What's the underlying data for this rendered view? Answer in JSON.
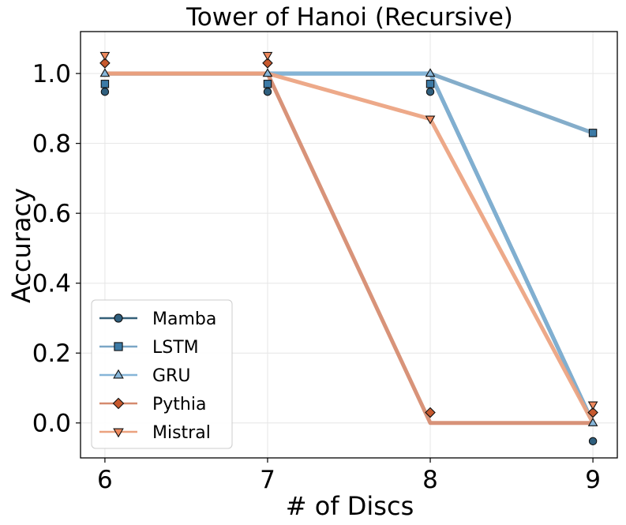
{
  "chart_data": {
    "type": "line",
    "title": "Tower of Hanoi (Recursive)",
    "xlabel": "# of Discs",
    "ylabel": "Accuracy",
    "x": [
      6,
      7,
      8,
      9
    ],
    "xlim": [
      5.85,
      9.15
    ],
    "ylim": [
      -0.1,
      1.12
    ],
    "xticks": [
      "6",
      "7",
      "8",
      "9"
    ],
    "yticks": [
      "0.0",
      "0.2",
      "0.4",
      "0.6",
      "0.8",
      "1.0"
    ],
    "grid": true,
    "legend_position": "lower-left",
    "series": [
      {
        "name": "Mamba",
        "values": [
          1.0,
          1.0,
          1.0,
          0.0
        ],
        "marker": "circle",
        "marker_color": "#2f5f7e",
        "line_color": "#345f78"
      },
      {
        "name": "LSTM",
        "values": [
          1.0,
          1.0,
          1.0,
          0.83
        ],
        "marker": "square",
        "marker_color": "#3c7aa6",
        "line_color": "#7aa6c6"
      },
      {
        "name": "GRU",
        "values": [
          1.0,
          1.0,
          1.0,
          0.0
        ],
        "marker": "triangle-up",
        "marker_color": "#86b5d8",
        "line_color": "#86b5d8"
      },
      {
        "name": "Pythia",
        "values": [
          1.0,
          1.0,
          0.0,
          0.0
        ],
        "marker": "diamond",
        "marker_color": "#c7592e",
        "line_color": "#d58a6e"
      },
      {
        "name": "Mistral",
        "values": [
          1.0,
          1.0,
          0.87,
          0.0
        ],
        "marker": "triangle-down",
        "marker_color": "#ef8a5e",
        "line_color": "#eba27f"
      }
    ]
  }
}
